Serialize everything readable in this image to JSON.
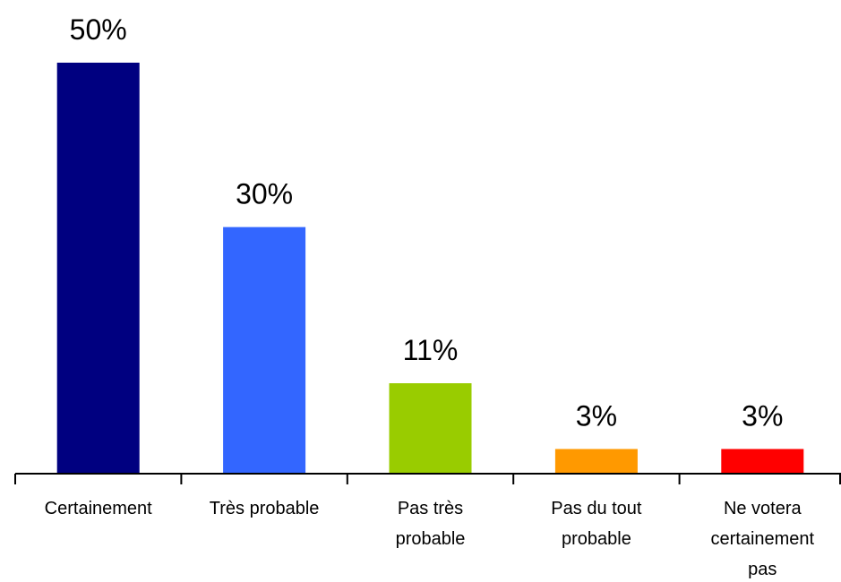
{
  "chart_data": {
    "type": "bar",
    "categories": [
      "Certainement",
      "Très probable",
      "Pas très probable",
      "Pas du tout probable",
      "Ne votera certainement pas"
    ],
    "category_lines": [
      [
        "Certainement"
      ],
      [
        "Très probable"
      ],
      [
        "Pas très",
        "probable"
      ],
      [
        "Pas du tout",
        "probable"
      ],
      [
        "Ne votera",
        "certainement",
        "pas"
      ]
    ],
    "values": [
      50,
      30,
      11,
      3,
      3
    ],
    "value_labels": [
      "50%",
      "30%",
      "11%",
      "3%",
      "3%"
    ],
    "colors": [
      "#000080",
      "#3366FF",
      "#99CC00",
      "#FF9900",
      "#FF0000"
    ],
    "ylim": [
      0,
      50
    ],
    "grid": false,
    "legend": "none",
    "title": "",
    "xlabel": "",
    "ylabel": ""
  }
}
